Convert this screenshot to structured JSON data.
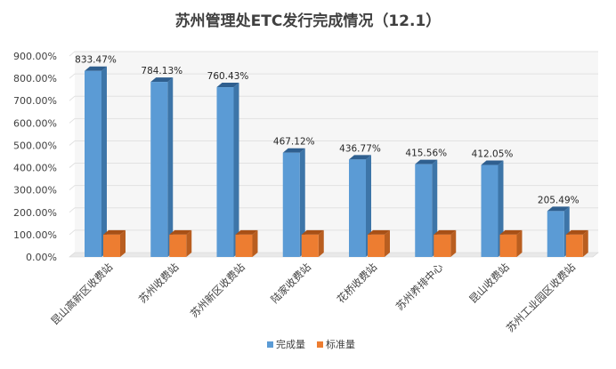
{
  "chart_data": {
    "type": "bar",
    "title": "苏州管理处ETC发行完成情况（12.1）",
    "categories": [
      "昆山高新区收费站",
      "苏州收费站",
      "苏州新区收费站",
      "陆家收费站",
      "花桥收费站",
      "苏州养排中心",
      "昆山收费站",
      "苏州工业园区收费站"
    ],
    "series": [
      {
        "name": "完成量",
        "values": [
          833.47,
          784.13,
          760.43,
          467.12,
          436.77,
          415.56,
          412.05,
          205.49
        ],
        "labels": [
          "833.47%",
          "784.13%",
          "760.43%",
          "467.12%",
          "436.77%",
          "415.56%",
          "412.05%",
          "205.49%"
        ]
      },
      {
        "name": "标准量",
        "values": [
          100,
          100,
          100,
          100,
          100,
          100,
          100,
          100
        ]
      }
    ],
    "yticks": [
      "0.00%",
      "100.00%",
      "200.00%",
      "300.00%",
      "400.00%",
      "500.00%",
      "600.00%",
      "700.00%",
      "800.00%",
      "900.00%"
    ],
    "ylim": [
      0,
      900
    ],
    "grid": true,
    "legend_position": "bottom",
    "style": "3d-column",
    "colors": {
      "series_front": [
        "#5b9bd5",
        "#ed7d31"
      ],
      "series_side": [
        "#3d75a8",
        "#b95e20"
      ],
      "series_top": [
        "#2f5f8f",
        "#a85016"
      ],
      "grid": "#e2e2e2",
      "wall": "#f6f6f6"
    }
  }
}
